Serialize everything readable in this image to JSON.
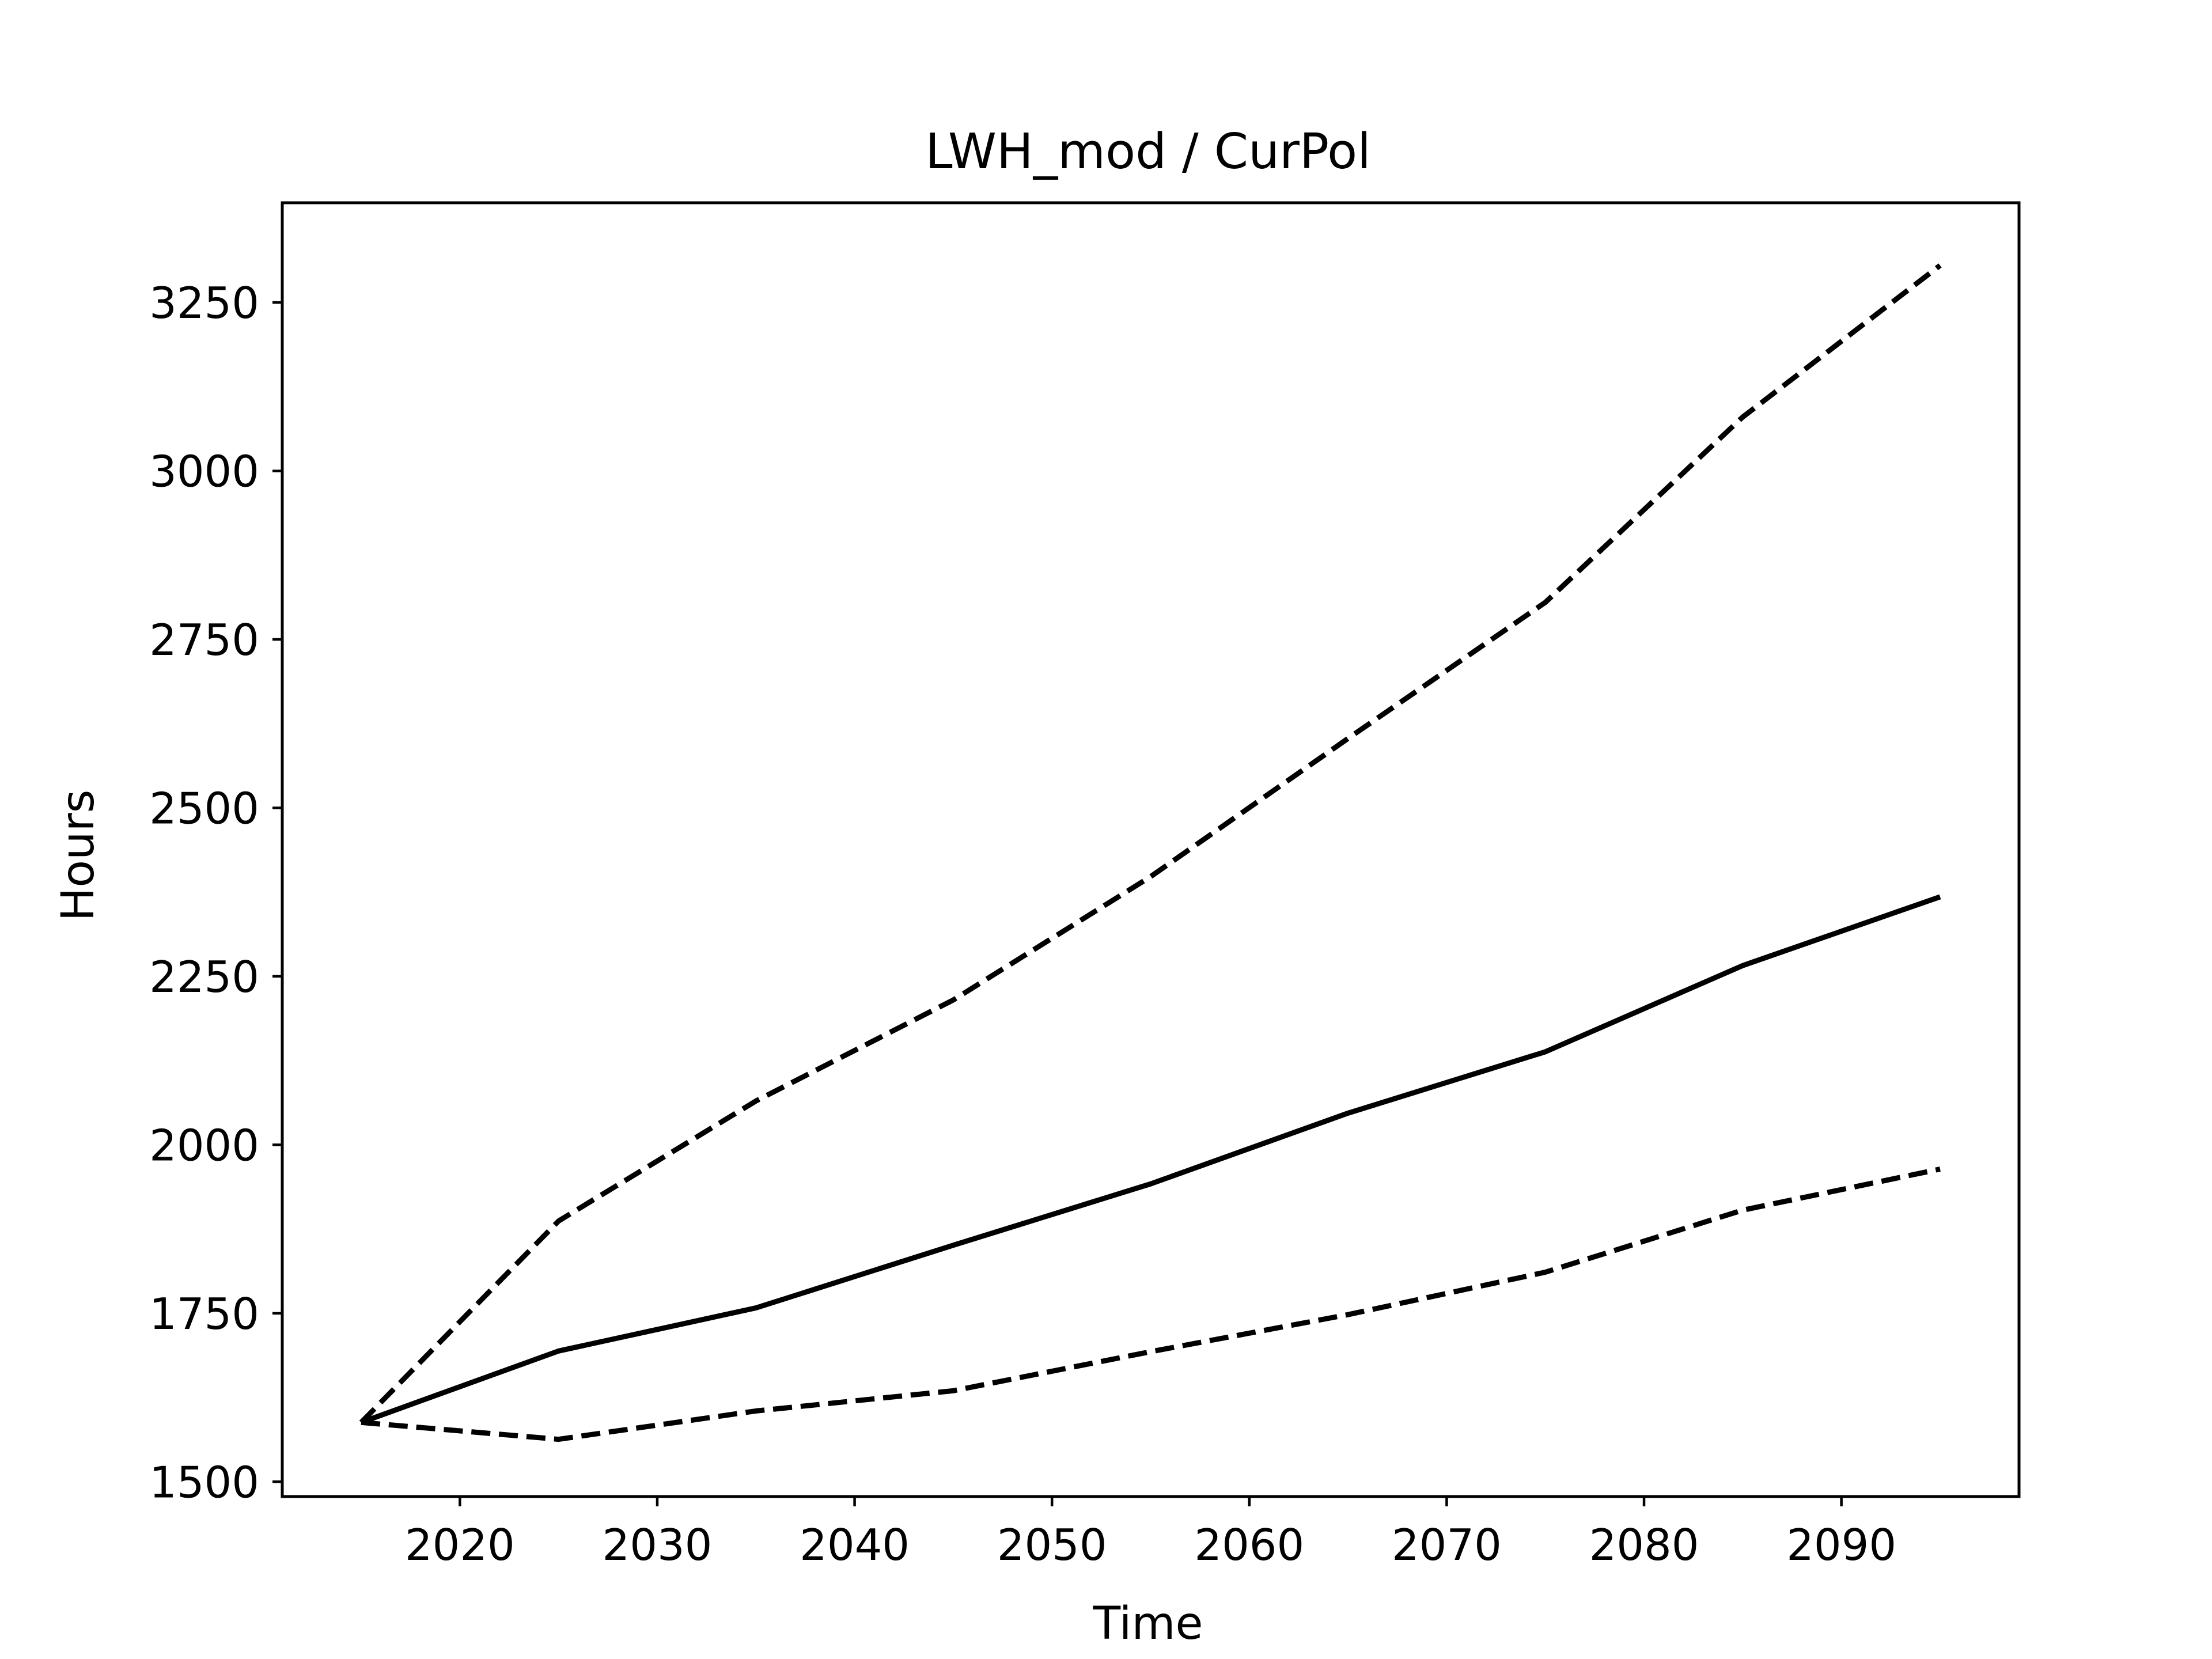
{
  "chart_data": {
    "type": "line",
    "title": "LWH_mod / CurPol",
    "xlabel": "Time",
    "ylabel": "Hours",
    "x": [
      2015,
      2025,
      2035,
      2045,
      2055,
      2065,
      2075,
      2085,
      2095
    ],
    "xlim": [
      2011,
      2099
    ],
    "ylim": [
      1478,
      3398
    ],
    "xticks": [
      2020,
      2030,
      2040,
      2050,
      2060,
      2070,
      2080,
      2090
    ],
    "yticks": [
      1500,
      1750,
      2000,
      2250,
      2500,
      2750,
      3000,
      3250
    ],
    "grid": false,
    "series": [
      {
        "style": "dashed",
        "color": "#000000",
        "values": [
          1588,
          1887,
          2065,
          2215,
          2398,
          2603,
          2805,
          3080,
          3305
        ]
      },
      {
        "style": "solid",
        "color": "#000000",
        "values": [
          1588,
          1694,
          1758,
          1851,
          1942,
          2047,
          2138,
          2266,
          2368
        ]
      },
      {
        "style": "dashed",
        "color": "#000000",
        "values": [
          1588,
          1563,
          1605,
          1635,
          1693,
          1748,
          1811,
          1903,
          1964
        ]
      }
    ]
  }
}
